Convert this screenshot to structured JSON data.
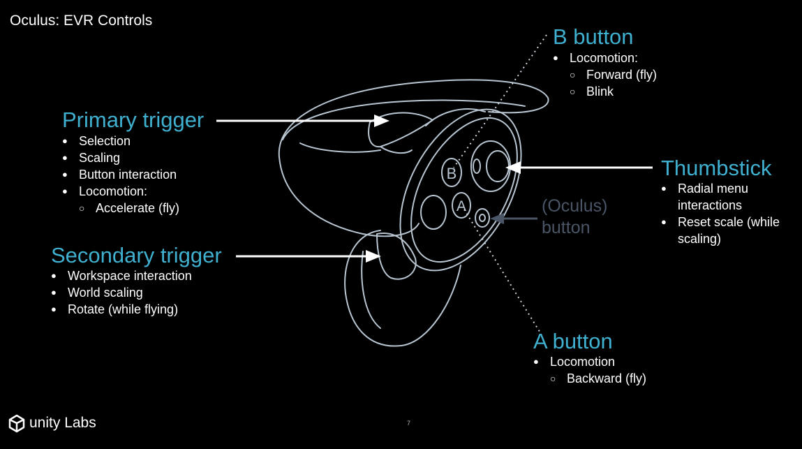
{
  "slide_title": "Oculus: EVR Controls",
  "colors": {
    "accent": "#3fb0cf",
    "muted": "#4a5566",
    "outline": "#b9c6d2",
    "background": "#000000"
  },
  "controller_labels": {
    "b": "B",
    "a": "A"
  },
  "primary_trigger": {
    "title": "Primary trigger",
    "items": [
      {
        "text": "Selection",
        "level": 1
      },
      {
        "text": "Scaling",
        "level": 1
      },
      {
        "text": "Button interaction",
        "level": 1
      },
      {
        "text": "Locomotion:",
        "level": 1
      },
      {
        "text": "Accelerate (fly)",
        "level": 2
      }
    ]
  },
  "secondary_trigger": {
    "title": "Secondary trigger",
    "items": [
      {
        "text": "Workspace interaction",
        "level": 1
      },
      {
        "text": "World scaling",
        "level": 1
      },
      {
        "text": "Rotate (while flying)",
        "level": 1
      }
    ]
  },
  "b_button": {
    "title": "B button",
    "items": [
      {
        "text": "Locomotion:",
        "level": 1
      },
      {
        "text": "Forward (fly)",
        "level": 2
      },
      {
        "text": "Blink",
        "level": 2
      }
    ]
  },
  "thumbstick": {
    "title": "Thumbstick",
    "items": [
      {
        "text": "Radial menu",
        "level": 1
      },
      {
        "text": "interactions",
        "level": 0
      },
      {
        "text": "Reset scale (while",
        "level": 1
      },
      {
        "text": "scaling)",
        "level": 0
      }
    ]
  },
  "oculus_button": {
    "line1": "(Oculus)",
    "line2": "button"
  },
  "a_button": {
    "title": "A button",
    "items": [
      {
        "text": "Locomotion",
        "level": 1
      },
      {
        "text": "Backward (fly)",
        "level": 2
      }
    ]
  },
  "footer": {
    "logo_text": "unity Labs",
    "page_number": "7"
  }
}
